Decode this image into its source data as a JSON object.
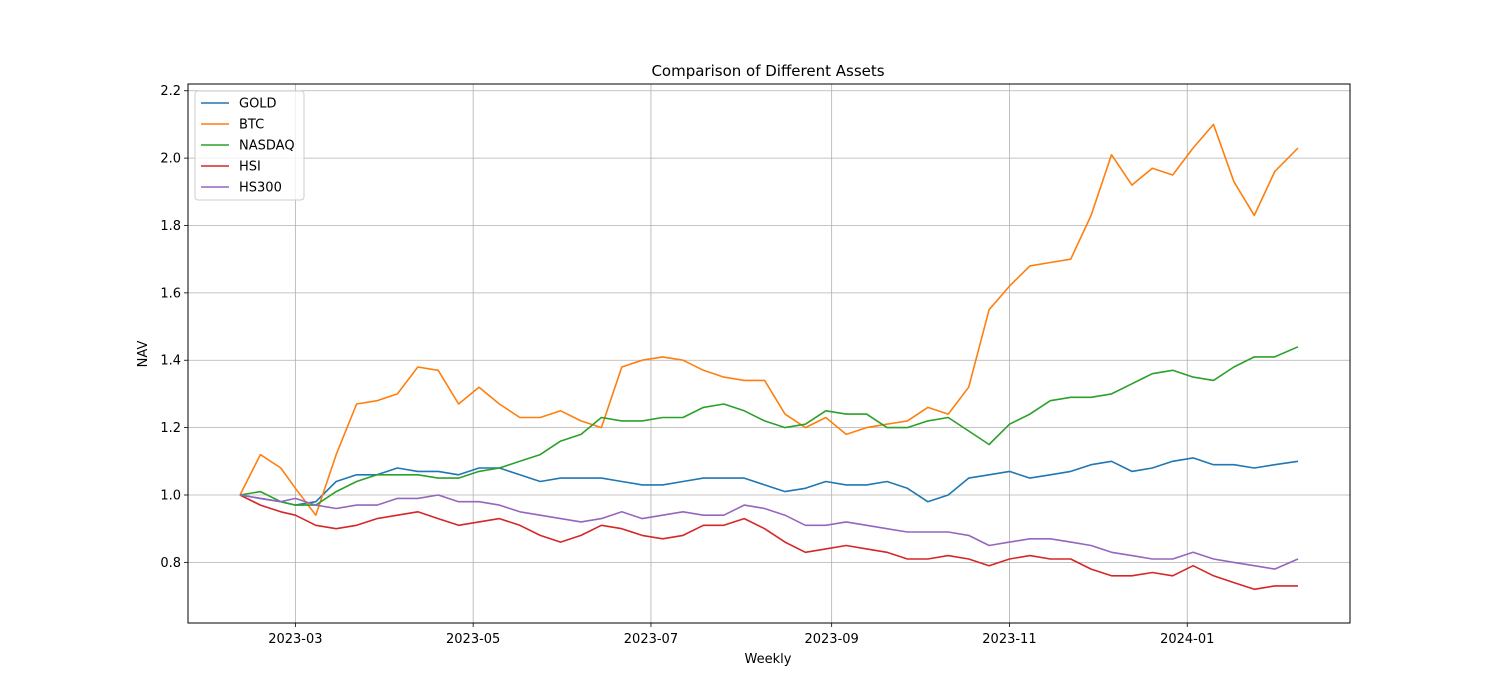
{
  "chart_data": {
    "type": "line",
    "title": "Comparison of Different Assets",
    "xlabel": "Weekly",
    "ylabel": "NAV",
    "grid": true,
    "legend_position": "top-left",
    "x_domain": [
      "2023-02-10",
      "2024-02-08"
    ],
    "ylim": [
      0.62,
      2.22
    ],
    "x_ticks": [
      {
        "date": "2023-03-01",
        "label": "2023-03"
      },
      {
        "date": "2023-05-01",
        "label": "2023-05"
      },
      {
        "date": "2023-07-01",
        "label": "2023-07"
      },
      {
        "date": "2023-09-01",
        "label": "2023-09"
      },
      {
        "date": "2023-11-01",
        "label": "2023-11"
      },
      {
        "date": "2024-01-01",
        "label": "2024-01"
      }
    ],
    "y_ticks": [
      {
        "value": 0.8,
        "label": "0.8"
      },
      {
        "value": 1.0,
        "label": "1.0"
      },
      {
        "value": 1.2,
        "label": "1.2"
      },
      {
        "value": 1.4,
        "label": "1.4"
      },
      {
        "value": 1.6,
        "label": "1.6"
      },
      {
        "value": 1.8,
        "label": "1.8"
      },
      {
        "value": 2.0,
        "label": "2.0"
      },
      {
        "value": 2.2,
        "label": "2.2"
      }
    ],
    "series": [
      {
        "name": "GOLD",
        "color": "#1f77b4",
        "points": [
          [
            "2023-02-10",
            1.0
          ],
          [
            "2023-02-17",
            0.99
          ],
          [
            "2023-02-24",
            0.98
          ],
          [
            "2023-03-01",
            0.97
          ],
          [
            "2023-03-08",
            0.98
          ],
          [
            "2023-03-15",
            1.04
          ],
          [
            "2023-03-22",
            1.06
          ],
          [
            "2023-03-29",
            1.06
          ],
          [
            "2023-04-05",
            1.08
          ],
          [
            "2023-04-12",
            1.07
          ],
          [
            "2023-04-19",
            1.07
          ],
          [
            "2023-04-26",
            1.06
          ],
          [
            "2023-05-03",
            1.08
          ],
          [
            "2023-05-10",
            1.08
          ],
          [
            "2023-05-17",
            1.06
          ],
          [
            "2023-05-24",
            1.04
          ],
          [
            "2023-05-31",
            1.05
          ],
          [
            "2023-06-07",
            1.05
          ],
          [
            "2023-06-14",
            1.05
          ],
          [
            "2023-06-21",
            1.04
          ],
          [
            "2023-06-28",
            1.03
          ],
          [
            "2023-07-05",
            1.03
          ],
          [
            "2023-07-12",
            1.04
          ],
          [
            "2023-07-19",
            1.05
          ],
          [
            "2023-07-26",
            1.05
          ],
          [
            "2023-08-02",
            1.05
          ],
          [
            "2023-08-09",
            1.03
          ],
          [
            "2023-08-16",
            1.01
          ],
          [
            "2023-08-23",
            1.02
          ],
          [
            "2023-08-30",
            1.04
          ],
          [
            "2023-09-06",
            1.03
          ],
          [
            "2023-09-13",
            1.03
          ],
          [
            "2023-09-20",
            1.04
          ],
          [
            "2023-09-27",
            1.02
          ],
          [
            "2023-10-04",
            0.98
          ],
          [
            "2023-10-11",
            1.0
          ],
          [
            "2023-10-18",
            1.05
          ],
          [
            "2023-10-25",
            1.06
          ],
          [
            "2023-11-01",
            1.07
          ],
          [
            "2023-11-08",
            1.05
          ],
          [
            "2023-11-15",
            1.06
          ],
          [
            "2023-11-22",
            1.07
          ],
          [
            "2023-11-29",
            1.09
          ],
          [
            "2023-12-06",
            1.1
          ],
          [
            "2023-12-13",
            1.07
          ],
          [
            "2023-12-20",
            1.08
          ],
          [
            "2023-12-27",
            1.1
          ],
          [
            "2024-01-03",
            1.11
          ],
          [
            "2024-01-10",
            1.09
          ],
          [
            "2024-01-17",
            1.09
          ],
          [
            "2024-01-24",
            1.08
          ],
          [
            "2024-01-31",
            1.09
          ],
          [
            "2024-02-08",
            1.1
          ]
        ]
      },
      {
        "name": "BTC",
        "color": "#ff7f0e",
        "points": [
          [
            "2023-02-10",
            1.0
          ],
          [
            "2023-02-17",
            1.12
          ],
          [
            "2023-02-24",
            1.08
          ],
          [
            "2023-03-01",
            1.02
          ],
          [
            "2023-03-08",
            0.94
          ],
          [
            "2023-03-15",
            1.12
          ],
          [
            "2023-03-22",
            1.27
          ],
          [
            "2023-03-29",
            1.28
          ],
          [
            "2023-04-05",
            1.3
          ],
          [
            "2023-04-12",
            1.38
          ],
          [
            "2023-04-19",
            1.37
          ],
          [
            "2023-04-26",
            1.27
          ],
          [
            "2023-05-03",
            1.32
          ],
          [
            "2023-05-10",
            1.27
          ],
          [
            "2023-05-17",
            1.23
          ],
          [
            "2023-05-24",
            1.23
          ],
          [
            "2023-05-31",
            1.25
          ],
          [
            "2023-06-07",
            1.22
          ],
          [
            "2023-06-14",
            1.2
          ],
          [
            "2023-06-21",
            1.38
          ],
          [
            "2023-06-28",
            1.4
          ],
          [
            "2023-07-05",
            1.41
          ],
          [
            "2023-07-12",
            1.4
          ],
          [
            "2023-07-19",
            1.37
          ],
          [
            "2023-07-26",
            1.35
          ],
          [
            "2023-08-02",
            1.34
          ],
          [
            "2023-08-09",
            1.34
          ],
          [
            "2023-08-16",
            1.24
          ],
          [
            "2023-08-23",
            1.2
          ],
          [
            "2023-08-30",
            1.23
          ],
          [
            "2023-09-06",
            1.18
          ],
          [
            "2023-09-13",
            1.2
          ],
          [
            "2023-09-20",
            1.21
          ],
          [
            "2023-09-27",
            1.22
          ],
          [
            "2023-10-04",
            1.26
          ],
          [
            "2023-10-11",
            1.24
          ],
          [
            "2023-10-18",
            1.32
          ],
          [
            "2023-10-25",
            1.55
          ],
          [
            "2023-11-01",
            1.62
          ],
          [
            "2023-11-08",
            1.68
          ],
          [
            "2023-11-15",
            1.69
          ],
          [
            "2023-11-22",
            1.7
          ],
          [
            "2023-11-29",
            1.83
          ],
          [
            "2023-12-06",
            2.01
          ],
          [
            "2023-12-13",
            1.92
          ],
          [
            "2023-12-20",
            1.97
          ],
          [
            "2023-12-27",
            1.95
          ],
          [
            "2024-01-03",
            2.03
          ],
          [
            "2024-01-10",
            2.1
          ],
          [
            "2024-01-17",
            1.93
          ],
          [
            "2024-01-24",
            1.83
          ],
          [
            "2024-01-31",
            1.96
          ],
          [
            "2024-02-08",
            2.03
          ]
        ]
      },
      {
        "name": "NASDAQ",
        "color": "#2ca02c",
        "points": [
          [
            "2023-02-10",
            1.0
          ],
          [
            "2023-02-17",
            1.01
          ],
          [
            "2023-02-24",
            0.98
          ],
          [
            "2023-03-01",
            0.97
          ],
          [
            "2023-03-08",
            0.97
          ],
          [
            "2023-03-15",
            1.01
          ],
          [
            "2023-03-22",
            1.04
          ],
          [
            "2023-03-29",
            1.06
          ],
          [
            "2023-04-05",
            1.06
          ],
          [
            "2023-04-12",
            1.06
          ],
          [
            "2023-04-19",
            1.05
          ],
          [
            "2023-04-26",
            1.05
          ],
          [
            "2023-05-03",
            1.07
          ],
          [
            "2023-05-10",
            1.08
          ],
          [
            "2023-05-17",
            1.1
          ],
          [
            "2023-05-24",
            1.12
          ],
          [
            "2023-05-31",
            1.16
          ],
          [
            "2023-06-07",
            1.18
          ],
          [
            "2023-06-14",
            1.23
          ],
          [
            "2023-06-21",
            1.22
          ],
          [
            "2023-06-28",
            1.22
          ],
          [
            "2023-07-05",
            1.23
          ],
          [
            "2023-07-12",
            1.23
          ],
          [
            "2023-07-19",
            1.26
          ],
          [
            "2023-07-26",
            1.27
          ],
          [
            "2023-08-02",
            1.25
          ],
          [
            "2023-08-09",
            1.22
          ],
          [
            "2023-08-16",
            1.2
          ],
          [
            "2023-08-23",
            1.21
          ],
          [
            "2023-08-30",
            1.25
          ],
          [
            "2023-09-06",
            1.24
          ],
          [
            "2023-09-13",
            1.24
          ],
          [
            "2023-09-20",
            1.2
          ],
          [
            "2023-09-27",
            1.2
          ],
          [
            "2023-10-04",
            1.22
          ],
          [
            "2023-10-11",
            1.23
          ],
          [
            "2023-10-18",
            1.19
          ],
          [
            "2023-10-25",
            1.15
          ],
          [
            "2023-11-01",
            1.21
          ],
          [
            "2023-11-08",
            1.24
          ],
          [
            "2023-11-15",
            1.28
          ],
          [
            "2023-11-22",
            1.29
          ],
          [
            "2023-11-29",
            1.29
          ],
          [
            "2023-12-06",
            1.3
          ],
          [
            "2023-12-13",
            1.33
          ],
          [
            "2023-12-20",
            1.36
          ],
          [
            "2023-12-27",
            1.37
          ],
          [
            "2024-01-03",
            1.35
          ],
          [
            "2024-01-10",
            1.34
          ],
          [
            "2024-01-17",
            1.38
          ],
          [
            "2024-01-24",
            1.41
          ],
          [
            "2024-01-31",
            1.41
          ],
          [
            "2024-02-08",
            1.44
          ]
        ]
      },
      {
        "name": "HSI",
        "color": "#d62728",
        "points": [
          [
            "2023-02-10",
            1.0
          ],
          [
            "2023-02-17",
            0.97
          ],
          [
            "2023-02-24",
            0.95
          ],
          [
            "2023-03-01",
            0.94
          ],
          [
            "2023-03-08",
            0.91
          ],
          [
            "2023-03-15",
            0.9
          ],
          [
            "2023-03-22",
            0.91
          ],
          [
            "2023-03-29",
            0.93
          ],
          [
            "2023-04-05",
            0.94
          ],
          [
            "2023-04-12",
            0.95
          ],
          [
            "2023-04-19",
            0.93
          ],
          [
            "2023-04-26",
            0.91
          ],
          [
            "2023-05-03",
            0.92
          ],
          [
            "2023-05-10",
            0.93
          ],
          [
            "2023-05-17",
            0.91
          ],
          [
            "2023-05-24",
            0.88
          ],
          [
            "2023-05-31",
            0.86
          ],
          [
            "2023-06-07",
            0.88
          ],
          [
            "2023-06-14",
            0.91
          ],
          [
            "2023-06-21",
            0.9
          ],
          [
            "2023-06-28",
            0.88
          ],
          [
            "2023-07-05",
            0.87
          ],
          [
            "2023-07-12",
            0.88
          ],
          [
            "2023-07-19",
            0.91
          ],
          [
            "2023-07-26",
            0.91
          ],
          [
            "2023-08-02",
            0.93
          ],
          [
            "2023-08-09",
            0.9
          ],
          [
            "2023-08-16",
            0.86
          ],
          [
            "2023-08-23",
            0.83
          ],
          [
            "2023-08-30",
            0.84
          ],
          [
            "2023-09-06",
            0.85
          ],
          [
            "2023-09-13",
            0.84
          ],
          [
            "2023-09-20",
            0.83
          ],
          [
            "2023-09-27",
            0.81
          ],
          [
            "2023-10-04",
            0.81
          ],
          [
            "2023-10-11",
            0.82
          ],
          [
            "2023-10-18",
            0.81
          ],
          [
            "2023-10-25",
            0.79
          ],
          [
            "2023-11-01",
            0.81
          ],
          [
            "2023-11-08",
            0.82
          ],
          [
            "2023-11-15",
            0.81
          ],
          [
            "2023-11-22",
            0.81
          ],
          [
            "2023-11-29",
            0.78
          ],
          [
            "2023-12-06",
            0.76
          ],
          [
            "2023-12-13",
            0.76
          ],
          [
            "2023-12-20",
            0.77
          ],
          [
            "2023-12-27",
            0.76
          ],
          [
            "2024-01-03",
            0.79
          ],
          [
            "2024-01-10",
            0.76
          ],
          [
            "2024-01-17",
            0.74
          ],
          [
            "2024-01-24",
            0.72
          ],
          [
            "2024-01-31",
            0.73
          ],
          [
            "2024-02-08",
            0.73
          ]
        ]
      },
      {
        "name": "HS300",
        "color": "#9467bd",
        "points": [
          [
            "2023-02-10",
            1.0
          ],
          [
            "2023-02-17",
            0.99
          ],
          [
            "2023-02-24",
            0.98
          ],
          [
            "2023-03-01",
            0.99
          ],
          [
            "2023-03-08",
            0.97
          ],
          [
            "2023-03-15",
            0.96
          ],
          [
            "2023-03-22",
            0.97
          ],
          [
            "2023-03-29",
            0.97
          ],
          [
            "2023-04-05",
            0.99
          ],
          [
            "2023-04-12",
            0.99
          ],
          [
            "2023-04-19",
            1.0
          ],
          [
            "2023-04-26",
            0.98
          ],
          [
            "2023-05-03",
            0.98
          ],
          [
            "2023-05-10",
            0.97
          ],
          [
            "2023-05-17",
            0.95
          ],
          [
            "2023-05-24",
            0.94
          ],
          [
            "2023-05-31",
            0.93
          ],
          [
            "2023-06-07",
            0.92
          ],
          [
            "2023-06-14",
            0.93
          ],
          [
            "2023-06-21",
            0.95
          ],
          [
            "2023-06-28",
            0.93
          ],
          [
            "2023-07-05",
            0.94
          ],
          [
            "2023-07-12",
            0.95
          ],
          [
            "2023-07-19",
            0.94
          ],
          [
            "2023-07-26",
            0.94
          ],
          [
            "2023-08-02",
            0.97
          ],
          [
            "2023-08-09",
            0.96
          ],
          [
            "2023-08-16",
            0.94
          ],
          [
            "2023-08-23",
            0.91
          ],
          [
            "2023-08-30",
            0.91
          ],
          [
            "2023-09-06",
            0.92
          ],
          [
            "2023-09-13",
            0.91
          ],
          [
            "2023-09-20",
            0.9
          ],
          [
            "2023-09-27",
            0.89
          ],
          [
            "2023-10-04",
            0.89
          ],
          [
            "2023-10-11",
            0.89
          ],
          [
            "2023-10-18",
            0.88
          ],
          [
            "2023-10-25",
            0.85
          ],
          [
            "2023-11-01",
            0.86
          ],
          [
            "2023-11-08",
            0.87
          ],
          [
            "2023-11-15",
            0.87
          ],
          [
            "2023-11-22",
            0.86
          ],
          [
            "2023-11-29",
            0.85
          ],
          [
            "2023-12-06",
            0.83
          ],
          [
            "2023-12-13",
            0.82
          ],
          [
            "2023-12-20",
            0.81
          ],
          [
            "2023-12-27",
            0.81
          ],
          [
            "2024-01-03",
            0.83
          ],
          [
            "2024-01-10",
            0.81
          ],
          [
            "2024-01-17",
            0.8
          ],
          [
            "2024-01-24",
            0.79
          ],
          [
            "2024-01-31",
            0.78
          ],
          [
            "2024-02-08",
            0.81
          ]
        ]
      }
    ]
  }
}
